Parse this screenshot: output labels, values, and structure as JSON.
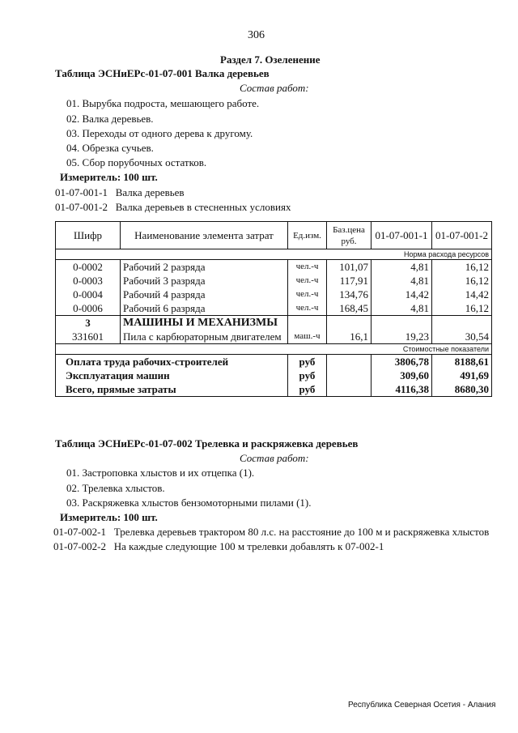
{
  "page_number": "306",
  "section_title": "Раздел  7.  Озеленение",
  "table1": {
    "title": "Таблица  ЭСНиЕРс-01-07-001  Валка деревьев",
    "works_heading": "Состав работ:",
    "works": [
      "01. Вырубка подроста, мешающего работе.",
      "02. Валка деревьев.",
      "03. Переходы от одного дерева к другому.",
      "04. Обрезка сучьев.",
      "05. Сбор порубочных остатков."
    ],
    "meter": "Измеритель: 100 шт.",
    "codes": [
      {
        "code": "01-07-001-1",
        "desc": "Валка деревьев"
      },
      {
        "code": "01-07-001-2",
        "desc": "Валка деревьев в стесненных условиях"
      }
    ],
    "headers": [
      "Шифр",
      "Наименование элемента затрат",
      "Ед.изм.",
      "Баз.цена руб.",
      "01-07-001-1",
      "01-07-001-2"
    ],
    "norm_label": "Норма расхода ресурсов",
    "rows": [
      [
        "0-0002",
        "Рабочий 2 разряда",
        "чел.-ч",
        "101,07",
        "4,81",
        "16,12"
      ],
      [
        "0-0003",
        "Рабочий 3 разряда",
        "чел.-ч",
        "117,91",
        "4,81",
        "16,12"
      ],
      [
        "0-0004",
        "Рабочий 4 разряда",
        "чел.-ч",
        "134,76",
        "14,42",
        "14,42"
      ],
      [
        "0-0006",
        "Рабочий 6 разряда",
        "чел.-ч",
        "168,45",
        "4,81",
        "16,12"
      ]
    ],
    "machines_code": "3",
    "machines_label": "МАШИНЫ И МЕХАНИЗМЫ",
    "machine_row": [
      "331601",
      "Пила с карбюраторным двигателем",
      "маш.-ч",
      "16,1",
      "19,23",
      "30,54"
    ],
    "cost_label": "Стоимостные показатели",
    "totals": [
      [
        "Оплата труда рабочих-строителей",
        "руб",
        "3806,78",
        "8188,61"
      ],
      [
        "Эксплуатация машин",
        "руб",
        "309,60",
        "491,69"
      ],
      [
        "Всего, прямые затраты",
        "руб",
        "4116,38",
        "8680,30"
      ]
    ]
  },
  "table2": {
    "title": "Таблица  ЭСНиЕРс-01-07-002  Трелевка и раскряжевка деревьев",
    "works_heading": "Состав работ:",
    "works": [
      "01. Застроповка хлыстов и их отцепка (1).",
      "02. Трелевка хлыстов.",
      "03. Раскряжевка хлыстов бензомоторными пилами (1)."
    ],
    "meter": "Измеритель: 100 шт.",
    "codes": [
      {
        "code": "01-07-002-1",
        "desc": "Трелевка деревьев трактором 80 л.с. на расстояние до 100 м и раскряжевка хлыстов"
      },
      {
        "code": "01-07-002-2",
        "desc": "На каждые следующие 100 м трелевки добавлять к 07-002-1"
      }
    ]
  },
  "footer": "Республика Северная Осетия - Алания"
}
